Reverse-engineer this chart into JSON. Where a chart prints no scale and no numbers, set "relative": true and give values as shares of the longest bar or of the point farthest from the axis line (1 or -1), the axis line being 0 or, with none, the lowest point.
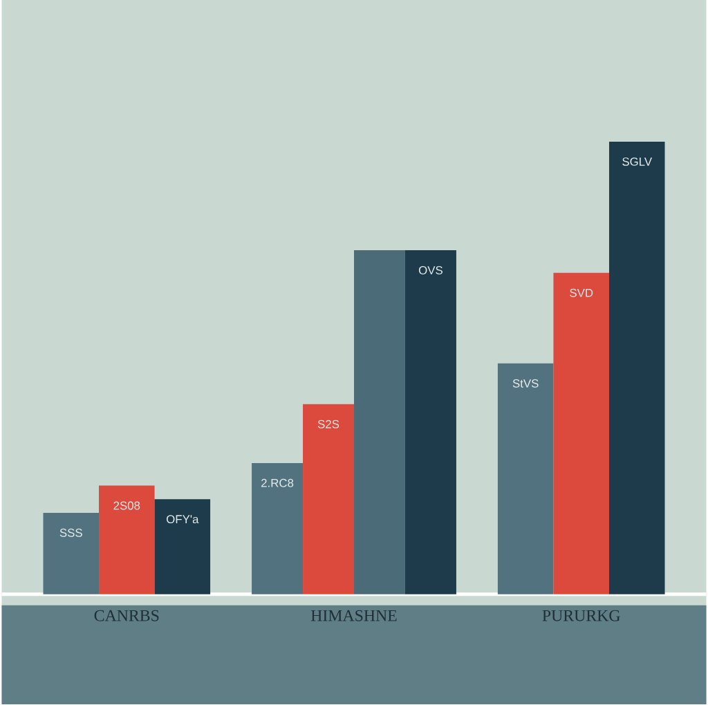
{
  "chart_data": {
    "type": "bar",
    "relative": true,
    "categories": [
      "CANRBS",
      "HIMASHNE",
      "PURURKG"
    ],
    "series": [
      {
        "color": "#527280",
        "values": [
          0.18,
          0.29,
          0.51
        ]
      },
      {
        "color": "#dc4a3d",
        "values": [
          0.24,
          0.42,
          0.71
        ]
      },
      {
        "color": "#4c6b78",
        "values": [
          null,
          0.76,
          null
        ]
      },
      {
        "color": "#1d3b4a",
        "values": [
          0.21,
          0.76,
          1
        ]
      }
    ],
    "annotations": [
      "SSS",
      "2S08",
      "OFY'a",
      "2.RC8",
      "S2S",
      "OVS",
      "StVS",
      "SVD",
      "SGLV"
    ]
  }
}
